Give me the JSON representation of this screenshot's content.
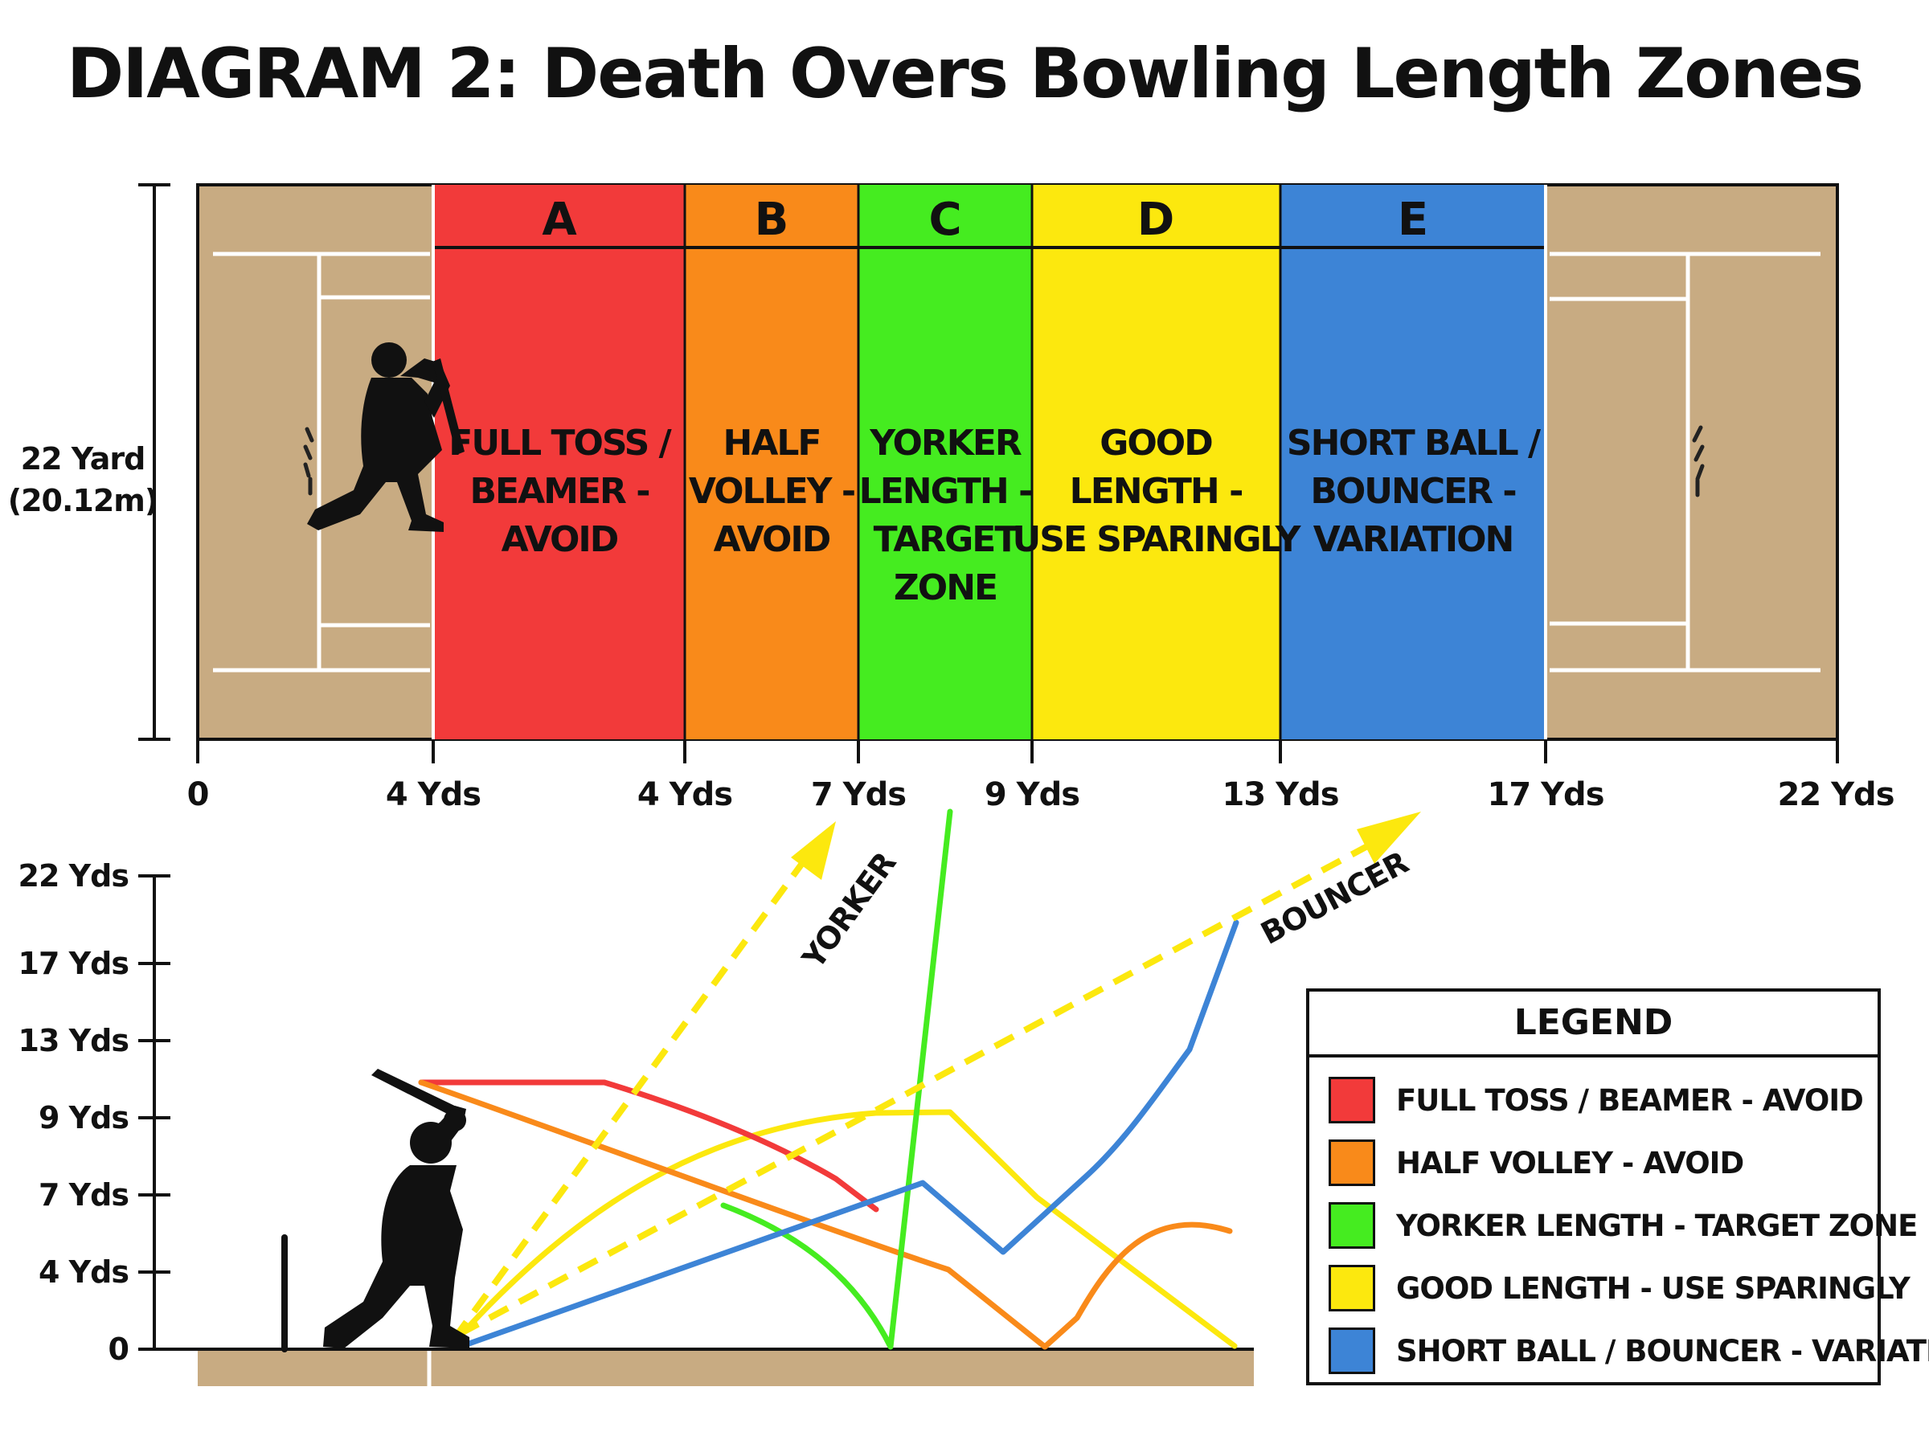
{
  "title": "DIAGRAM 2: Death Overs Bowling Length Zones",
  "pitch": {
    "length_label_line1": "22 Yard",
    "length_label_line2": "(20.12m)",
    "zones": [
      {
        "letter": "A",
        "lines": [
          "FULL TOSS /",
          "BEAMER -",
          "AVOID"
        ],
        "color": "#f23a3a"
      },
      {
        "letter": "B",
        "lines": [
          "HALF",
          "VOLLEY -",
          "AVOID"
        ],
        "color": "#f98a1a"
      },
      {
        "letter": "C",
        "lines": [
          "YORKER",
          "LENGTH -",
          "TARGET",
          "ZONE"
        ],
        "color": "#45ec20"
      },
      {
        "letter": "D",
        "lines": [
          "GOOD",
          "LENGTH -",
          "USE SPARINGLY"
        ],
        "color": "#fce80e"
      },
      {
        "letter": "E",
        "lines": [
          "SHORT BALL /",
          "BOUNCER -",
          "VARIATION"
        ],
        "color": "#3d84d6"
      }
    ],
    "distance_ticks": [
      "0",
      "4 Yds",
      "4 Yds",
      "7 Yds",
      "9 Yds",
      "13 Yds",
      "17 Yds",
      "22 Yds"
    ],
    "pitch_color": "#c8ab82"
  },
  "trajectory": {
    "y_ticks": [
      "22 Yds",
      "17 Yds",
      "13 Yds",
      "9 Yds",
      "7 Yds",
      "4 Yds",
      "0"
    ],
    "yorker_label": "YORKER",
    "bouncer_label": "BOUNCER"
  },
  "legend": {
    "title": "LEGEND",
    "items": [
      {
        "label": "FULL TOSS / BEAMER - AVOID",
        "color": "#f23a3a"
      },
      {
        "label": "HALF VOLLEY - AVOID",
        "color": "#f98a1a"
      },
      {
        "label": "YORKER LENGTH - TARGET ZONE",
        "color": "#45ec20"
      },
      {
        "label": "GOOD LENGTH - USE SPARINGLY",
        "color": "#fce80e"
      },
      {
        "label": "SHORT BALL / BOUNCER - VARIATION",
        "color": "#3d84d6"
      }
    ]
  }
}
